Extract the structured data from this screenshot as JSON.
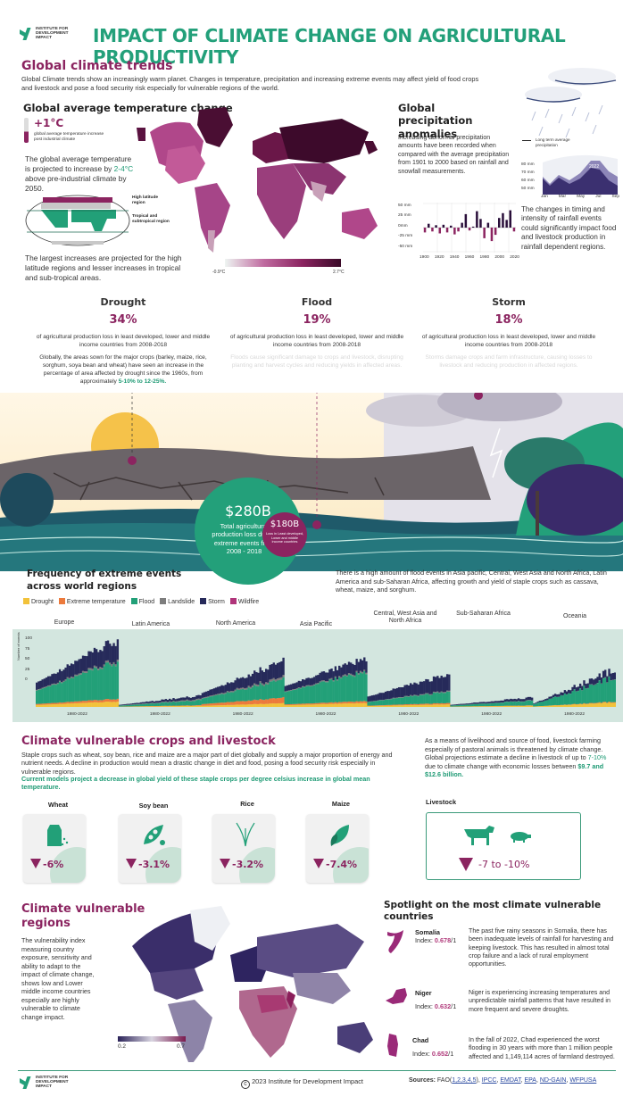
{
  "header": {
    "org_name": "INSTITUTE FOR DEVELOPMENT IMPACT",
    "title": "IMPACT OF CLIMATE CHANGE ON AGRICULTURAL PRODUCTIVITY"
  },
  "trends": {
    "heading": "Global climate trends",
    "intro": "Global Climate trends show an increasingly warm planet. Changes in temperature, precipitation and increasing extreme events may affect yield of food crops and livestock and pose a food security risk especially for vulnerable regions of the world."
  },
  "temperature": {
    "heading": "Global average temperature change",
    "increase": "+1°C",
    "increase_caption": "global average temperature increase post industrial climate",
    "projection_pre": "The global average temperature is projected to increase by ",
    "projection_highlight": "2-4°C",
    "projection_post": " above pre-industrial climate by 2050.",
    "high_latitude_label": "High latitude region",
    "tropical_label": "Tropical and subtropical region",
    "largest_increase": "The largest increases are projected for the high latitude regions and lesser increases in tropical and sub-tropical areas.",
    "scale_min": "-0.9°C",
    "scale_max": "2.7°C",
    "colors": {
      "low": "#e9f3ef",
      "mid": "#b0478a",
      "high": "#4a0e33"
    }
  },
  "precipitation": {
    "heading": "Global precipitation anomalies",
    "description": "Increasing abnormal precipitation amounts have been recorded when compared with the average precipitation from 1901 to 2000 based on rainfall and snowfall measurements.",
    "impact": "The changes in timing and intensity of rainfall events could significantly impact food and livestock production in rainfall dependent regions.",
    "long_term_label": "Long term average precipitation",
    "year_label": "2022",
    "seasonal_y_ticks": [
      "80 mm",
      "70 mm",
      "60 mm",
      "50 mm"
    ],
    "seasonal_x_ticks": [
      "Jan",
      "Mar",
      "May",
      "Jul",
      "Sep"
    ]
  },
  "chart_data": [
    {
      "type": "bar",
      "title": "Global precipitation anomalies",
      "xlabel": "",
      "ylabel": "mm",
      "ylim": [
        -50,
        50
      ],
      "y_ticks": [
        "50 mm",
        "25 mm",
        "0mm",
        "-25 mm",
        "-50 mm"
      ],
      "x_ticks": [
        "1900",
        "1920",
        "1940",
        "1960",
        "1980",
        "2000",
        "2020"
      ],
      "x": [
        1901,
        1905,
        1910,
        1915,
        1920,
        1925,
        1930,
        1935,
        1940,
        1945,
        1950,
        1955,
        1960,
        1965,
        1970,
        1975,
        1980,
        1985,
        1990,
        1995,
        2000,
        2005,
        2010,
        2015,
        2020
      ],
      "values": [
        -10,
        8,
        -8,
        5,
        -12,
        6,
        -10,
        4,
        -14,
        -8,
        10,
        28,
        -6,
        2,
        34,
        18,
        -22,
        10,
        -28,
        -15,
        20,
        30,
        16,
        36,
        -8
      ],
      "colors": {
        "positive": "#2a0f3a",
        "negative": "#8b2460"
      },
      "grid": true
    },
    {
      "type": "area",
      "title": "Monthly precipitation",
      "categories": [
        "Jan",
        "Feb",
        "Mar",
        "Apr",
        "May",
        "Jun",
        "Jul",
        "Aug",
        "Sep"
      ],
      "series": [
        {
          "name": "Long term average precipitation",
          "values": [
            58,
            54,
            60,
            58,
            64,
            72,
            80,
            80,
            72
          ]
        },
        {
          "name": "2022",
          "values": [
            60,
            55,
            63,
            59,
            62,
            70,
            78,
            76,
            68
          ]
        }
      ],
      "ylim": [
        50,
        80
      ]
    },
    {
      "type": "bar",
      "title": "Frequency of extreme events across world regions",
      "ylabel": "Number of events",
      "ylim": [
        0,
        100
      ],
      "y_ticks": [
        "100",
        "75",
        "50",
        "25",
        "0"
      ],
      "legend": [
        "Drought",
        "Extreme temperature",
        "Flood",
        "Landslide",
        "Storm",
        "Wildfire"
      ],
      "legend_colors": [
        "#f2c23a",
        "#ec7a3c",
        "#22a078",
        "#7d7d7d",
        "#262a5a",
        "#b0347a"
      ],
      "categories": [
        "Europe",
        "Latin America",
        "North America",
        "Asia Pacific",
        "Central, West Asia and North Africa",
        "Sub-Saharan Africa",
        "Oceania"
      ],
      "x_range_label": "1980-2022",
      "series_peak_total": [
        105,
        18,
        72,
        76,
        52,
        15,
        60
      ],
      "series_start_total": [
        35,
        3,
        20,
        30,
        15,
        3,
        5
      ]
    }
  ],
  "events": {
    "items": [
      {
        "name": "Drought",
        "value": "34%",
        "subtitle": "of agricultural production loss in least developed, lower and middle income countries from 2008-2018",
        "desc_pre": "Globally, the areas sown for the major crops (barley, maize, rice, sorghum, soya bean and wheat) have seen an increase in the percentage of area affected by drought since the 1960s, from approximately ",
        "desc_highlight": "5-10% to 12-25%."
      },
      {
        "name": "Flood",
        "value": "19%",
        "subtitle": "of agricultural production loss in least developed, lower and middle income countries from 2008-2018",
        "desc_faint": "Floods cause significant damage to crops and livestock, disrupting planting and harvest cycles and reducing yields in affected areas."
      },
      {
        "name": "Storm",
        "value": "18%",
        "subtitle": "of agricultural production loss in least developed, lower and middle income countries from 2008-2018",
        "desc_faint": "Storms damage crops and farm infrastructure, causing losses to livestock and reducing production in affected regions."
      }
    ],
    "total_value": "$280B",
    "total_caption": "Total agricultural production loss due to extreme events from 2008 - 2018",
    "ldc_value": "$180B",
    "ldc_caption": "Loss in Least developed, Lower and middle income countries"
  },
  "frequency": {
    "heading": "Frequency of extreme events across world regions",
    "note": "There is a high amount of flood events in Asia pacific, Central, West Asia and North Africa, Latin America and sub-Saharan Africa, affecting growth and yield of staple crops such as cassava, wheat, maize, and sorghum.",
    "legend": [
      {
        "label": "Drought",
        "color": "#f2c23a"
      },
      {
        "label": "Extreme temperature",
        "color": "#ec7a3c"
      },
      {
        "label": "Flood",
        "color": "#22a078"
      },
      {
        "label": "Landslide",
        "color": "#7d7d7d"
      },
      {
        "label": "Storm",
        "color": "#262a5a"
      },
      {
        "label": "Wildfire",
        "color": "#b0347a"
      }
    ],
    "regions": [
      "Europe",
      "Latin America",
      "North America",
      "Asia Pacific",
      "Central, West Asia and North Africa",
      "Sub-Saharan Africa",
      "Oceania"
    ],
    "x_label": "1980-2022",
    "y_axis_label": "Number of events",
    "y_ticks": [
      "100",
      "75",
      "50",
      "25",
      "0"
    ]
  },
  "crops": {
    "heading": "Climate vulnerable crops and livestock",
    "intro": "Staple crops such as wheat, soy bean, rice and maize are a major part of diet globally and supply a major proportion of energy and nutrient needs. A decline in production would mean a drastic change in diet and food, posing a food security risk especially in vulnerable regions.",
    "models_note": "Current models project a decrease in global yield of these staple crops per degree celsius increase in global mean temperature.",
    "items": [
      {
        "name": "Wheat",
        "value": "-6%"
      },
      {
        "name": "Soy bean",
        "value": "-3.1%"
      },
      {
        "name": "Rice",
        "value": "-3.2%"
      },
      {
        "name": "Maize",
        "value": "-7.4%"
      }
    ],
    "livestock_text_pre": "As a means of livelihood and source of food, livestock farming especially of pastoral animals is threatened by climate change. Global projections estimate a decline in livestock of up to ",
    "livestock_highlight1": "7-10%",
    "livestock_text_mid": " due to climate change with economic losses between ",
    "livestock_highlight2": "$9.7 and $12.6 billion.",
    "livestock_label": "Livestock",
    "livestock_value": "-7 to -10%"
  },
  "vulnerable": {
    "heading": "Climate vulnerable regions",
    "description": "The vulnerability index measuring country exposure, sensitivity and ability to adapt to the impact of climate change, shows low and Lower middle income countries especially are highly vulnerable to climate change impact.",
    "scale_min": "0.2",
    "scale_max": "0.7"
  },
  "spotlight": {
    "heading": "Spotlight on the most climate vulnerable countries",
    "index_prefix": "Index: ",
    "index_suffix": "/1",
    "countries": [
      {
        "name": "Somalia",
        "index": "0.678",
        "text": "The past five rainy seasons in Somalia, there has been inadequate levels of rainfall for harvesting and keeping livestock. This has resulted in almost total crop failure and a lack of rural employment opportunities."
      },
      {
        "name": "Niger",
        "index": "0.632",
        "text": "Niger is experiencing increasing temperatures and unpredictable rainfall patterns that have resulted in more frequent and severe droughts."
      },
      {
        "name": "Chad",
        "index": "0.652",
        "text": "In the fall of 2022, Chad experienced the worst flooding in 30 years with more than 1 million people affected and 1,149,114 acres of farmland destroyed."
      }
    ]
  },
  "footer": {
    "org_name": "INSTITUTE FOR DEVELOPMENT IMPACT",
    "copyright": "2023  Institute for Development Impact",
    "sources_label": "Sources: ",
    "sources_fao": "FAO(",
    "fao_refs": "1,2,3,4,5",
    "sources_close": "), ",
    "links": [
      "IPCC",
      "EMDAT",
      "EPA",
      "ND-GAIN",
      "WFPUSA"
    ]
  }
}
